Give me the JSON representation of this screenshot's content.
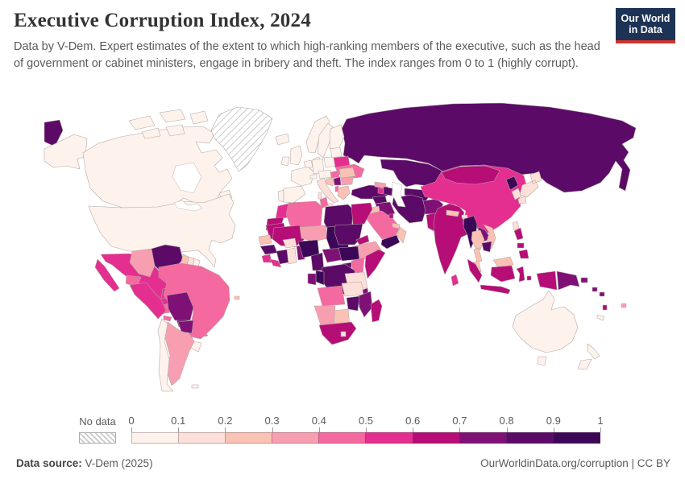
{
  "header": {
    "title": "Executive Corruption Index, 2024",
    "subtitle": "Data by V-Dem. Expert estimates of the extent to which high-ranking members of the executive, such as the head of government or cabinet ministers, engage in bribery and theft. The index ranges from 0 to 1 (highly corrupt)."
  },
  "logo": {
    "line1": "Our World",
    "line2": "in Data",
    "bg": "#1d3356",
    "accent": "#d0342c"
  },
  "legend": {
    "no_data_label": "No data",
    "ticks": [
      "0",
      "0.1",
      "0.2",
      "0.3",
      "0.4",
      "0.5",
      "0.6",
      "0.7",
      "0.8",
      "0.9",
      "1"
    ]
  },
  "footer": {
    "source_label": "Data source:",
    "source_value": " V-Dem (2025)",
    "right_text": "OurWorldinData.org/corruption | CC BY"
  },
  "chart_data": {
    "type": "choropleth_map",
    "title": "Executive Corruption Index, 2024",
    "value_range": [
      0,
      1
    ],
    "bin_edges": [
      0,
      0.1,
      0.2,
      0.3,
      0.4,
      0.5,
      0.6,
      0.7,
      0.8,
      0.9,
      1
    ],
    "bins": [
      "#fdf2ec",
      "#fce0d9",
      "#f9c2b4",
      "#f79fb1",
      "#f4699f",
      "#e42f90",
      "#b60d77",
      "#7e1076",
      "#5b0b67",
      "#3d0758"
    ],
    "no_data": "hatched",
    "countries": {
      "canada": 0,
      "usa": 0,
      "greenland": "no_data",
      "iceland": 0,
      "mexico": 5,
      "guatemala": 4,
      "belize": 2,
      "honduras": 7,
      "el-salvador": 4,
      "nicaragua": 8,
      "costa-rica": 1,
      "panama": 4,
      "cuba": 4,
      "jamaica": 3,
      "haiti": 6,
      "dominican-republic": 3,
      "puerto-rico": 2,
      "colombia": 3,
      "venezuela": 8,
      "guyana": 2,
      "suriname": 1,
      "french-guiana": 0,
      "ecuador": 4,
      "peru": 5,
      "brazil": 4,
      "bolivia": 7,
      "paraguay": 7,
      "uruguay": 0,
      "argentina": 3,
      "chile": 0,
      "falkland-islands": 0,
      "norway": 0,
      "sweden": 0,
      "finland": 0,
      "denmark": 0,
      "uk": 0,
      "ireland": 0,
      "portugal": 0,
      "spain": 0,
      "france": 0,
      "belgium-netherlands": 0,
      "germany": 0,
      "switzerland": 0,
      "austria-czechia": 0,
      "italy": 1,
      "poland": 0,
      "baltics": 0,
      "belarus": 5,
      "ukraine": 4,
      "moldova": 4,
      "hungary": 4,
      "romania": 2,
      "serbia": 7,
      "croatia-bosnia": 2,
      "bulgaria": 3,
      "albania": 4,
      "greece": 2,
      "russia": 8,
      "kazakhstan": 8,
      "uzbekistan": 8,
      "turkmenistan": 9,
      "kyrgyzstan": 7,
      "tajikistan": 8,
      "afghanistan": 7,
      "pakistan": 6,
      "turkey": 8,
      "georgia": 3,
      "armenia": 5,
      "azerbaijan": 8,
      "syria": 8,
      "iraq": 7,
      "iran": 8,
      "lebanon-israel": 1,
      "jordan": 2,
      "saudi-arabia": 4,
      "kuwait": 6,
      "yemen": 9,
      "oman": 2,
      "uae": 2,
      "india": 6,
      "nepal": 2,
      "bhutan": 1,
      "bangladesh": 8,
      "sri-lanka": 5,
      "china": 5,
      "mongolia": 6,
      "north-korea": 9,
      "south-korea": 1,
      "japan": 1,
      "taiwan": 1,
      "myanmar": 9,
      "thailand": 2,
      "laos": 7,
      "vietnam": 2,
      "cambodia": 8,
      "malaysia": 2,
      "indonesia": 6,
      "papua-new-guinea": 7,
      "philippines": 6,
      "solomon-islands": 7,
      "vanuatu": 6,
      "fiji": 3,
      "new-caledonia": 0,
      "australia": 0,
      "new-zealand": 0,
      "morocco": 5,
      "western-sahara": 6,
      "algeria": 4,
      "tunisia": 4,
      "libya": 8,
      "egypt": 6,
      "mauritania": 6,
      "mali": 6,
      "senegal": 2,
      "guinea": 8,
      "sierra-leone": 5,
      "liberia": 5,
      "ivory-coast": 8,
      "ghana": 1,
      "burkina-faso": 1,
      "togo-benin": 7,
      "niger": 3,
      "nigeria": 9,
      "chad": 9,
      "sudan": 8,
      "eritrea": 6,
      "djibouti": 6,
      "ethiopia": 3,
      "somalia": 6,
      "cameroon": 8,
      "central-african-republic": 7,
      "south-sudan": 9,
      "uganda": 8,
      "kenya": 4,
      "dr-congo": 8,
      "congo": 9,
      "gabon": 7,
      "rwanda-burundi": 8,
      "tanzania": 1,
      "angola": 4,
      "zambia": 1,
      "malawi": 7,
      "mozambique": 7,
      "zimbabwe": 8,
      "botswana": 2,
      "namibia": 3,
      "south-africa": 6,
      "lesotho": 1,
      "madagascar": 6
    }
  }
}
